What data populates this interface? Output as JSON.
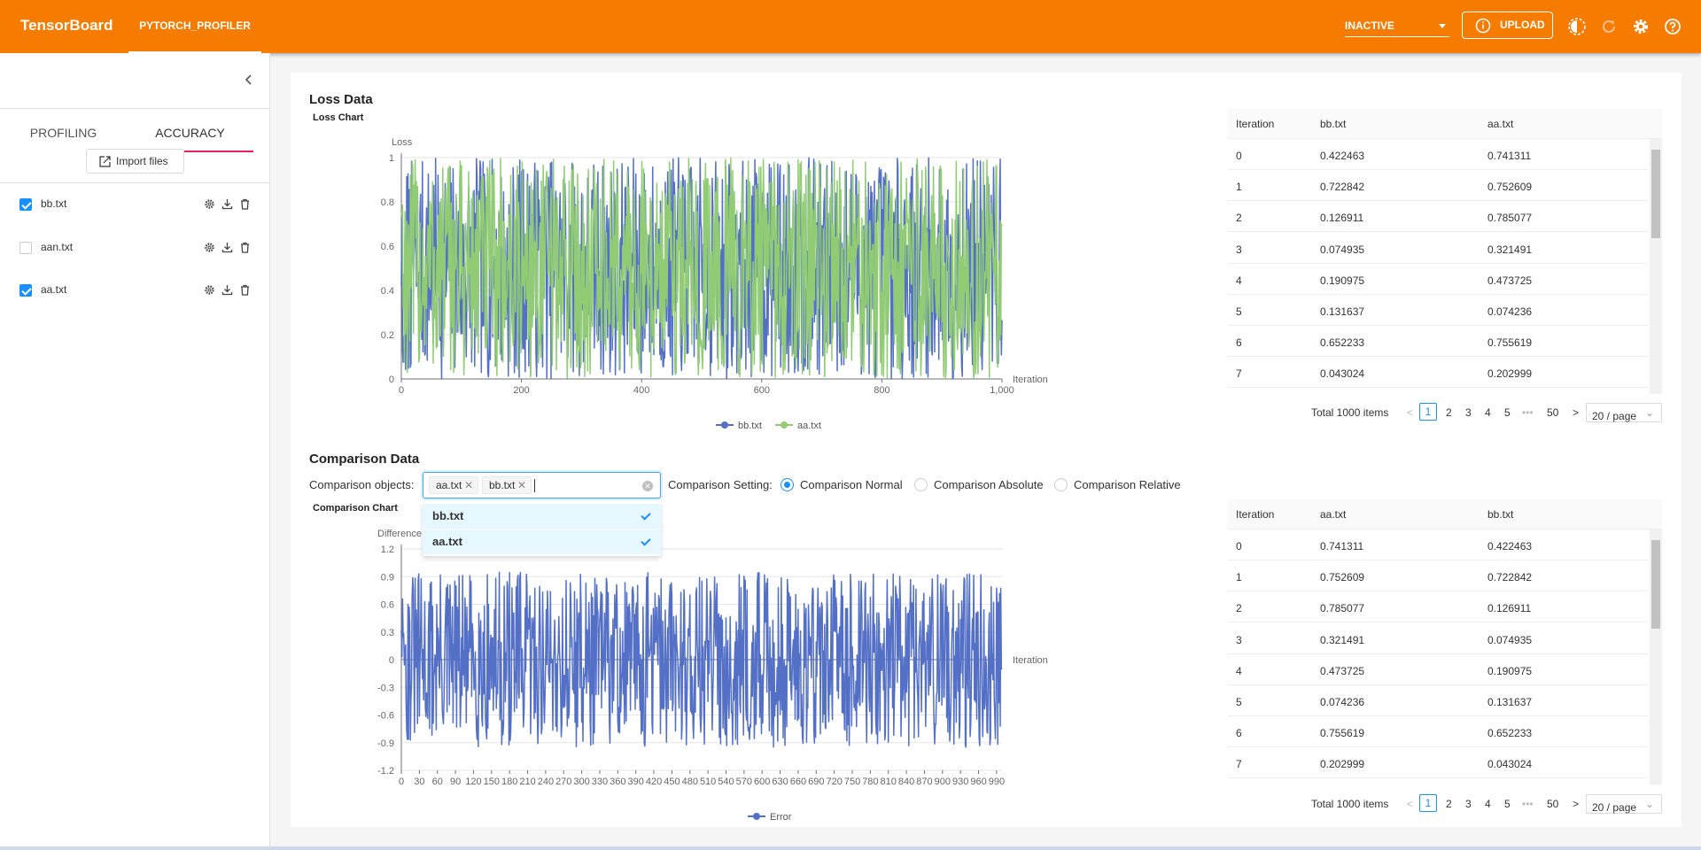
{
  "header": {
    "brand": "TensorBoard",
    "plugin_tab": "PYTORCH_PROFILER",
    "run_status": "INACTIVE",
    "upload_label": "UPLOAD",
    "icons": [
      "theme-icon",
      "refresh-icon",
      "settings-icon",
      "help-icon"
    ],
    "accent": "#f57c00"
  },
  "sidebar": {
    "tabs": [
      {
        "label": "PROFILING",
        "active": false
      },
      {
        "label": "ACCURACY",
        "active": true
      }
    ],
    "import_label": "Import files",
    "files": [
      {
        "name": "bb.txt",
        "checked": true
      },
      {
        "name": "aan.txt",
        "checked": false
      },
      {
        "name": "aa.txt",
        "checked": true
      }
    ]
  },
  "loss": {
    "section_title": "Loss Data",
    "chart_title": "Loss Chart",
    "table": {
      "headers": [
        "Iteration",
        "bb.txt",
        "aa.txt"
      ],
      "rows": [
        [
          "0",
          "0.422463",
          "0.741311"
        ],
        [
          "1",
          "0.722842",
          "0.752609"
        ],
        [
          "2",
          "0.126911",
          "0.785077"
        ],
        [
          "3",
          "0.074935",
          "0.321491"
        ],
        [
          "4",
          "0.190975",
          "0.473725"
        ],
        [
          "5",
          "0.131637",
          "0.074236"
        ],
        [
          "6",
          "0.652233",
          "0.755619"
        ],
        [
          "7",
          "0.043024",
          "0.202999"
        ]
      ]
    },
    "pager": {
      "total": "Total 1000 items",
      "pages": [
        "1",
        "2",
        "3",
        "4",
        "5",
        "•••",
        "50"
      ],
      "page_size": "20 / page"
    }
  },
  "comparison": {
    "section_title": "Comparison Data",
    "objects_label": "Comparison objects:",
    "selected_tags": [
      "aa.txt",
      "bb.txt"
    ],
    "dropdown_options": [
      "bb.txt",
      "aa.txt"
    ],
    "setting_label": "Comparison Setting:",
    "settings": [
      {
        "label": "Comparison Normal",
        "selected": true
      },
      {
        "label": "Comparison Absolute",
        "selected": false
      },
      {
        "label": "Comparison Relative",
        "selected": false
      }
    ],
    "chart_title": "Comparison Chart",
    "table": {
      "headers": [
        "Iteration",
        "aa.txt",
        "bb.txt"
      ],
      "rows": [
        [
          "0",
          "0.741311",
          "0.422463"
        ],
        [
          "1",
          "0.752609",
          "0.722842"
        ],
        [
          "2",
          "0.785077",
          "0.126911"
        ],
        [
          "3",
          "0.321491",
          "0.074935"
        ],
        [
          "4",
          "0.473725",
          "0.190975"
        ],
        [
          "5",
          "0.074236",
          "0.131637"
        ],
        [
          "6",
          "0.755619",
          "0.652233"
        ],
        [
          "7",
          "0.202999",
          "0.043024"
        ]
      ]
    },
    "pager": {
      "total": "Total 1000 items",
      "pages": [
        "1",
        "2",
        "3",
        "4",
        "5",
        "•••",
        "50"
      ],
      "page_size": "20 / page"
    }
  },
  "chart_data": [
    {
      "type": "line",
      "title": "Loss Chart",
      "xlabel": "Iteration",
      "ylabel": "Loss",
      "xlim": [
        0,
        1000
      ],
      "ylim": [
        0,
        1
      ],
      "xticks": [
        "0",
        "200",
        "400",
        "600",
        "800",
        "1,000"
      ],
      "yticks": [
        "0",
        "0.2",
        "0.4",
        "0.6",
        "0.8",
        "1"
      ],
      "legend": "bottom",
      "series": [
        {
          "name": "bb.txt",
          "color": "#5470c6",
          "first_values": [
            0.422463,
            0.722842,
            0.126911,
            0.074935,
            0.190975,
            0.131637,
            0.652233,
            0.043024
          ]
        },
        {
          "name": "aa.txt",
          "color": "#91cc75",
          "first_values": [
            0.741311,
            0.752609,
            0.785077,
            0.321491,
            0.473725,
            0.074236,
            0.755619,
            0.202999
          ]
        }
      ],
      "points": 1000
    },
    {
      "type": "line",
      "title": "Comparison Chart",
      "xlabel": "Iteration",
      "ylabel": "Difference",
      "xlim": [
        0,
        999
      ],
      "ylim": [
        -1.2,
        1.2
      ],
      "xticks": [
        "0",
        "30",
        "60",
        "90",
        "120",
        "150",
        "180",
        "210",
        "240",
        "270",
        "300",
        "330",
        "360",
        "390",
        "420",
        "450",
        "480",
        "510",
        "540",
        "570",
        "600",
        "630",
        "660",
        "690",
        "720",
        "750",
        "780",
        "810",
        "840",
        "870",
        "900",
        "930",
        "960",
        "990"
      ],
      "yticks": [
        "-1.2",
        "-0.9",
        "-0.6",
        "-0.3",
        "0",
        "0.3",
        "0.6",
        "0.9",
        "1.2"
      ],
      "legend": "bottom",
      "series": [
        {
          "name": "Error",
          "color": "#5470c6",
          "first_values": [
            0.318848,
            0.029767,
            0.658166,
            0.246556,
            0.28275,
            -0.057401,
            0.103386,
            0.159975
          ]
        }
      ],
      "points": 1000
    }
  ]
}
